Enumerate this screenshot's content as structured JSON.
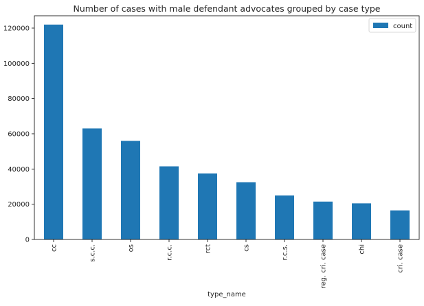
{
  "chart_data": {
    "type": "bar",
    "title": "Number of cases with male defendant advocates grouped by case type",
    "xlabel": "type_name",
    "ylabel": "",
    "categories": [
      "cc",
      "s.c.c.",
      "os",
      "r.c.c.",
      "rct",
      "cs",
      "r.c.s.",
      "reg. cri. case",
      "chi",
      "cri. case"
    ],
    "series": [
      {
        "name": "count",
        "values": [
          122000,
          63000,
          56000,
          41500,
          37500,
          32500,
          25000,
          21500,
          20500,
          16500
        ],
        "color": "#1f77b4"
      }
    ],
    "ylim": [
      0,
      127000
    ],
    "yticks": [
      0,
      20000,
      40000,
      60000,
      80000,
      100000,
      120000
    ],
    "ytick_labels": [
      "0",
      "20000",
      "40000",
      "60000",
      "80000",
      "100000",
      "120000"
    ],
    "grid": false,
    "legend": "top-right"
  }
}
